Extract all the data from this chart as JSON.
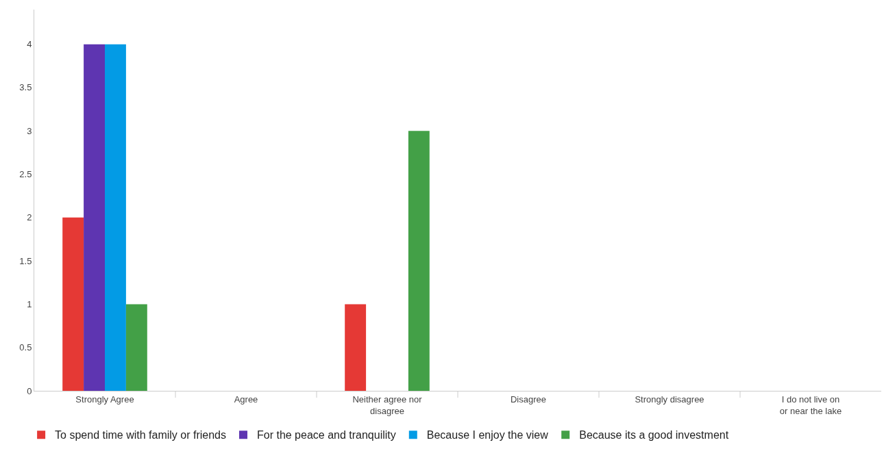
{
  "chart_data": {
    "type": "bar",
    "categories": [
      "Strongly Agree",
      "Agree",
      "Neither agree nor disagree",
      "Disagree",
      "Strongly disagree",
      "I do not live on or near the lake"
    ],
    "series": [
      {
        "name": "To spend time with family or friends",
        "color": "#e53935",
        "values": [
          2,
          0,
          1,
          0,
          0,
          0
        ]
      },
      {
        "name": "For the peace and tranquility",
        "color": "#5e35b1",
        "values": [
          4,
          0,
          0,
          0,
          0,
          0
        ]
      },
      {
        "name": "Because I enjoy the view",
        "color": "#039be5",
        "values": [
          4,
          0,
          0,
          0,
          0,
          0
        ]
      },
      {
        "name": "Because its a good investment",
        "color": "#43a047",
        "values": [
          1,
          0,
          3,
          0,
          0,
          0
        ]
      }
    ],
    "ylim": [
      0,
      4.4
    ],
    "yticks": [
      0,
      0.5,
      1,
      1.5,
      2,
      2.5,
      3,
      3.5,
      4
    ],
    "grid": false,
    "legend": "bottom left"
  }
}
